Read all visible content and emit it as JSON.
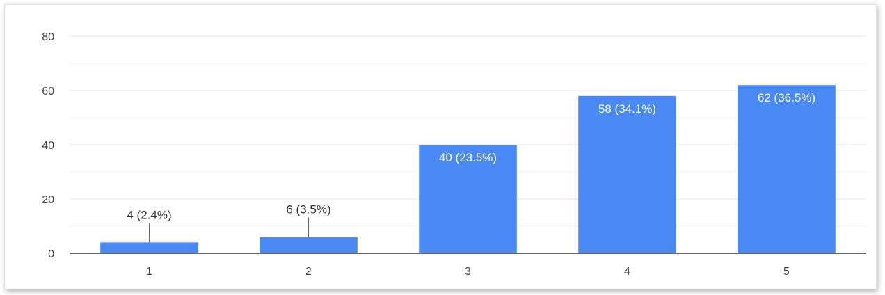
{
  "chart_data": {
    "type": "bar",
    "categories": [
      "1",
      "2",
      "3",
      "4",
      "5"
    ],
    "values": [
      4,
      6,
      40,
      58,
      62
    ],
    "data_labels": [
      "4 (2.4%)",
      "6 (3.5%)",
      "40 (23.5%)",
      "58 (34.1%)",
      "62 (36.5%)"
    ],
    "y_ticks": [
      "0",
      "20",
      "40",
      "60",
      "80"
    ],
    "ylim": [
      0,
      80
    ],
    "title": "",
    "xlabel": "",
    "ylabel": "",
    "bar_color": "#4a89f3",
    "grid": true,
    "legend": "none"
  }
}
